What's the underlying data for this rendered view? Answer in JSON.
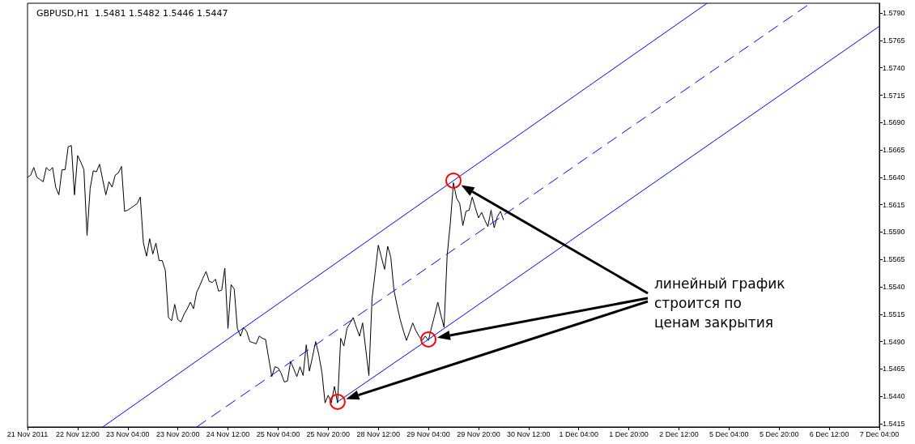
{
  "chart_data": {
    "type": "line",
    "title": "GBPUSD,H1  1.5481 1.5482 1.5446 1.5447",
    "annotations": [
      "линейный график строится по ценам закрытия"
    ],
    "categories": [
      "21 Nov 2011",
      null,
      null,
      null,
      null,
      null,
      null,
      null,
      null,
      null,
      null,
      null,
      null,
      null,
      null,
      null,
      "22 Nov 12:00",
      null,
      null,
      null,
      null,
      null,
      null,
      null,
      null,
      null,
      null,
      null,
      null,
      null,
      null,
      null,
      "23 Nov 04:00",
      null,
      null,
      null,
      null,
      null,
      null,
      null,
      null,
      null,
      null,
      null,
      null,
      null,
      null,
      null,
      "23 Nov 20:00",
      null,
      null,
      null,
      null,
      null,
      null,
      null,
      null,
      null,
      null,
      null,
      null,
      null,
      null,
      null,
      "24 Nov 12:00",
      null,
      null,
      null,
      null,
      null,
      null,
      null,
      null,
      null,
      null,
      null,
      null,
      null,
      null,
      null,
      "25 Nov 04:00",
      null,
      null,
      null,
      null,
      null,
      null,
      null,
      null,
      null,
      null,
      null,
      null,
      null,
      null,
      null,
      "25 Nov 20:00",
      null,
      null,
      null,
      null,
      null,
      null,
      null,
      null,
      null,
      null,
      null,
      null,
      null,
      null,
      null,
      "28 Nov 12:00",
      null,
      null,
      null,
      null,
      null,
      null,
      null,
      null,
      null,
      null,
      null,
      null,
      null,
      null,
      null,
      "29 Nov 04:00",
      null,
      null,
      null,
      null,
      null,
      null,
      null,
      null,
      null,
      null,
      null,
      null,
      null,
      null,
      null,
      "29 Nov 20:00",
      null,
      null,
      null,
      null,
      null,
      null,
      null,
      null,
      null,
      null,
      null,
      null,
      null,
      null,
      null,
      "30 Nov 12:00",
      null,
      null,
      null,
      null,
      null,
      null,
      null,
      null,
      null,
      null,
      null,
      null,
      null,
      null,
      null,
      "1 Dec 04:00",
      null,
      null,
      null,
      null,
      null,
      null,
      null,
      null,
      null,
      null,
      null,
      null,
      null,
      null,
      null,
      "1 Dec 20:00",
      null,
      null,
      null,
      null,
      null,
      null,
      null,
      null,
      null,
      null,
      null,
      null,
      null,
      null,
      null,
      "2 Dec 12:00",
      null,
      null,
      null,
      null,
      null,
      null,
      null,
      null,
      null,
      null,
      null,
      null,
      null,
      null,
      null,
      "5 Dec 04:00",
      null,
      null,
      null,
      null,
      null,
      null,
      null,
      null,
      null,
      null,
      null,
      null,
      null,
      null,
      null,
      "5 Dec 20:00",
      null,
      null,
      null,
      null,
      null,
      null,
      null,
      null,
      null,
      null,
      null,
      null,
      null,
      null,
      null,
      "6 Dec 12:00",
      null,
      null,
      null,
      null,
      null,
      null,
      null,
      null,
      null,
      null,
      null,
      null,
      null,
      null,
      null,
      "7 Dec 04:00"
    ],
    "ylim": [
      1.5412,
      1.5799
    ],
    "yticks": [
      1.5415,
      {
        "value": 1.544,
        "label": "1.5440"
      },
      1.5465,
      {
        "value": 1.549,
        "label": "1.5490"
      },
      1.5515,
      {
        "value": 1.554,
        "label": "1.5540"
      },
      1.5565,
      {
        "value": 1.559,
        "label": "1.5590"
      },
      1.5615,
      {
        "value": 1.564,
        "label": "1.5640"
      },
      1.5665,
      {
        "value": 1.569,
        "label": "1.5690"
      },
      1.5715,
      {
        "value": 1.574,
        "label": "1.5740"
      },
      1.5765,
      {
        "value": 1.579,
        "label": "1.5790"
      }
    ],
    "series": [
      {
        "color": "#000000",
        "line_style": "solid",
        "values": [
          1.564,
          1.5642,
          1.5649,
          1.564,
          1.5638,
          1.5636,
          1.5649,
          1.5646,
          1.5649,
          1.5631,
          1.5624,
          1.5647,
          1.5647,
          1.5668,
          1.5669,
          1.5624,
          1.566,
          1.5654,
          1.5647,
          1.5587,
          1.563,
          1.5646,
          1.5645,
          1.5652,
          1.5638,
          1.5624,
          1.5636,
          1.5631,
          1.5642,
          1.5644,
          1.565,
          1.5609,
          1.561,
          1.5612,
          1.5614,
          1.5616,
          1.5622,
          1.558,
          1.5568,
          1.5584,
          1.557,
          1.558,
          1.5564,
          1.5564,
          1.5555,
          1.5512,
          1.5509,
          1.5524,
          1.551,
          1.5508,
          1.5515,
          1.552,
          1.5526,
          1.552,
          1.5535,
          1.5541,
          1.5548,
          1.5554,
          1.5545,
          1.5544,
          1.5547,
          1.5536,
          1.5537,
          1.5557,
          1.5502,
          1.5542,
          1.5538,
          1.5502,
          1.5495,
          1.5503,
          1.5499,
          1.549,
          1.5489,
          1.5488,
          1.5495,
          1.5493,
          1.5492,
          1.5475,
          1.5458,
          1.5467,
          1.5466,
          1.5461,
          1.5453,
          1.5454,
          1.5472,
          1.5465,
          1.5458,
          1.5467,
          1.5459,
          1.5487,
          1.5463,
          1.5476,
          1.549,
          1.5478,
          1.5462,
          1.5434,
          1.5441,
          1.5434,
          1.5449,
          1.5434,
          1.5493,
          1.5486,
          1.5502,
          1.5507,
          1.5512,
          1.5503,
          1.5495,
          1.5507,
          1.5483,
          1.5459,
          1.5529,
          1.5553,
          1.5578,
          1.5567,
          1.5556,
          1.5577,
          1.5567,
          1.5537,
          1.5523,
          1.551,
          1.55,
          1.5491,
          1.5499,
          1.5507,
          1.55,
          1.5495,
          1.5491,
          1.5495,
          1.5491,
          1.5503,
          1.5514,
          1.5526,
          1.5514,
          1.5503,
          1.5569,
          1.5598,
          1.5635,
          1.5621,
          1.5616,
          1.5596,
          1.5609,
          1.561,
          1.5622,
          1.5612,
          1.5603,
          1.5608,
          1.5601,
          1.5595,
          1.561,
          1.5594,
          1.5604,
          1.5609,
          1.5601,
          null,
          null,
          null,
          null,
          null,
          null,
          null,
          null,
          null,
          null,
          null,
          null,
          null,
          null,
          null,
          null,
          null,
          null,
          null,
          null,
          null,
          null,
          null,
          null,
          null,
          null,
          null,
          null,
          null,
          null,
          null,
          null,
          null,
          null,
          null,
          null,
          null,
          null,
          null,
          null,
          null,
          null,
          null,
          null,
          null,
          null,
          null,
          null,
          null,
          null,
          null,
          null,
          null,
          null,
          null,
          null,
          null,
          null,
          null,
          null,
          null,
          null,
          null,
          null,
          null,
          null,
          null,
          null,
          null,
          null,
          null,
          null,
          null,
          null,
          null,
          null,
          null,
          null,
          null,
          null,
          null,
          null,
          null,
          null,
          null,
          null,
          null,
          null,
          null,
          null,
          null,
          null,
          null,
          null,
          null,
          null,
          null,
          null,
          null,
          null,
          null,
          null,
          null,
          null,
          null,
          null,
          null,
          null,
          null,
          null,
          null,
          null,
          null,
          null,
          null,
          null,
          null,
          null,
          null,
          null
        ]
      },
      {
        "color": "#0000ff",
        "line_style": "solid",
        "values": [
          null,
          null,
          null,
          null,
          null,
          null,
          null,
          null,
          null,
          null,
          null,
          null,
          null,
          null,
          null,
          null,
          null,
          null,
          null,
          null,
          null,
          null,
          null,
          null,
          1.5412,
          null,
          null,
          null,
          null,
          null,
          null,
          null,
          null,
          null,
          null,
          null,
          null,
          null,
          null,
          null,
          null,
          null,
          null,
          null,
          null,
          null,
          null,
          null,
          null,
          null,
          null,
          null,
          null,
          null,
          null,
          null,
          null,
          null,
          null,
          null,
          null,
          null,
          null,
          null,
          null,
          null,
          null,
          null,
          null,
          null,
          null,
          null,
          null,
          null,
          null,
          null,
          null,
          null,
          null,
          null,
          null,
          null,
          null,
          null,
          null,
          null,
          null,
          null,
          null,
          null,
          null,
          null,
          null,
          null,
          null,
          null,
          null,
          null,
          null,
          null,
          null,
          null,
          null,
          null,
          null,
          null,
          null,
          null,
          null,
          null,
          null,
          null,
          null,
          null,
          null,
          null,
          null,
          null,
          null,
          null,
          null,
          null,
          null,
          null,
          null,
          null,
          null,
          null,
          null,
          null,
          null,
          null,
          null,
          null,
          null,
          null,
          1.5637,
          null,
          null,
          null,
          null,
          null,
          null,
          null,
          null,
          null,
          null,
          null,
          null,
          null,
          null,
          null,
          null,
          null,
          null,
          null,
          null,
          null,
          null,
          null,
          null,
          null,
          null,
          null,
          null,
          null,
          null,
          null,
          null,
          null,
          null,
          null,
          null,
          null,
          null,
          null,
          null,
          null,
          null,
          null,
          null,
          null,
          null,
          null,
          null,
          null,
          null,
          null,
          null,
          null,
          null,
          null,
          null,
          null,
          null,
          null,
          null,
          null,
          null,
          null,
          null,
          null,
          null,
          null,
          null,
          null,
          null,
          null,
          null,
          null,
          null,
          null,
          null,
          null,
          null,
          null,
          null,
          1.5799,
          null,
          null,
          null,
          null,
          null,
          null,
          null,
          null,
          null,
          null,
          null,
          null,
          null,
          null,
          null,
          null,
          null,
          null,
          null,
          null,
          null,
          null,
          null,
          null,
          null,
          null,
          null,
          null,
          null,
          null,
          null,
          null,
          null,
          null,
          null,
          null,
          null,
          null,
          null,
          null,
          null,
          null,
          null,
          null,
          null,
          null,
          null,
          null,
          null,
          null,
          null,
          null,
          null,
          null,
          null
        ]
      },
      {
        "color": "#0000ff",
        "line_style": "dashed",
        "values": [
          null,
          null,
          null,
          null,
          null,
          null,
          null,
          null,
          null,
          null,
          null,
          null,
          null,
          null,
          null,
          null,
          null,
          null,
          null,
          null,
          null,
          null,
          null,
          null,
          null,
          null,
          null,
          null,
          null,
          null,
          null,
          null,
          null,
          null,
          null,
          null,
          null,
          null,
          null,
          null,
          null,
          null,
          null,
          null,
          null,
          null,
          null,
          null,
          null,
          null,
          null,
          null,
          null,
          null,
          1.5412,
          null,
          null,
          null,
          null,
          null,
          null,
          null,
          null,
          null,
          null,
          null,
          null,
          null,
          null,
          null,
          null,
          null,
          null,
          null,
          null,
          null,
          null,
          null,
          null,
          null,
          null,
          null,
          null,
          null,
          null,
          null,
          null,
          null,
          null,
          null,
          null,
          null,
          null,
          null,
          null,
          null,
          null,
          null,
          null,
          null,
          null,
          null,
          null,
          null,
          null,
          null,
          null,
          null,
          null,
          null,
          null,
          null,
          null,
          null,
          null,
          null,
          null,
          null,
          null,
          null,
          null,
          null,
          null,
          null,
          null,
          null,
          null,
          null,
          null,
          null,
          null,
          null,
          null,
          null,
          null,
          null,
          null,
          null,
          null,
          null,
          null,
          null,
          null,
          null,
          null,
          null,
          null,
          null,
          null,
          null,
          null,
          null,
          null,
          null,
          null,
          null,
          null,
          null,
          null,
          null,
          null,
          null,
          null,
          null,
          null,
          null,
          null,
          null,
          null,
          null,
          null,
          null,
          null,
          null,
          null,
          null,
          null,
          null,
          null,
          null,
          null,
          null,
          null,
          null,
          null,
          null,
          null,
          null,
          null,
          null,
          null,
          null,
          null,
          null,
          null,
          null,
          null,
          null,
          null,
          null,
          null,
          null,
          null,
          null,
          null,
          null,
          null,
          null,
          null,
          null,
          null,
          null,
          null,
          null,
          null,
          null,
          null,
          null,
          null,
          null,
          null,
          null,
          null,
          null,
          null,
          null,
          null,
          null,
          null,
          null,
          null,
          null,
          null,
          null,
          null,
          null,
          null,
          null,
          null,
          null,
          null,
          null,
          null,
          null,
          null,
          null,
          null,
          null,
          null,
          null,
          1.5799,
          null,
          null,
          null,
          null,
          null,
          null,
          null,
          null,
          null,
          null,
          null,
          null,
          null,
          null,
          null,
          null,
          null,
          null,
          null,
          null,
          null,
          null
        ]
      },
      {
        "color": "#0000ff",
        "line_style": "solid",
        "values": [
          null,
          null,
          null,
          null,
          null,
          null,
          null,
          null,
          null,
          null,
          null,
          null,
          null,
          null,
          null,
          null,
          null,
          null,
          null,
          null,
          null,
          null,
          null,
          null,
          null,
          null,
          null,
          null,
          null,
          null,
          null,
          null,
          null,
          null,
          null,
          null,
          null,
          null,
          null,
          null,
          null,
          null,
          null,
          null,
          null,
          null,
          null,
          null,
          null,
          null,
          null,
          null,
          null,
          null,
          null,
          null,
          null,
          null,
          null,
          null,
          null,
          null,
          null,
          null,
          null,
          null,
          null,
          null,
          null,
          null,
          null,
          null,
          null,
          null,
          null,
          null,
          null,
          null,
          null,
          null,
          null,
          null,
          null,
          null,
          null,
          null,
          null,
          null,
          null,
          null,
          null,
          null,
          null,
          null,
          null,
          null,
          null,
          null,
          null,
          1.5435,
          null,
          null,
          null,
          null,
          null,
          null,
          null,
          null,
          null,
          null,
          null,
          null,
          null,
          null,
          null,
          null,
          null,
          null,
          null,
          null,
          null,
          null,
          null,
          null,
          null,
          null,
          null,
          null,
          1.5492,
          null,
          null,
          null,
          null,
          null,
          null,
          null,
          null,
          null,
          null,
          null,
          null,
          null,
          null,
          null,
          null,
          null,
          null,
          null,
          null,
          null,
          null,
          null,
          null,
          null,
          null,
          null,
          null,
          null,
          null,
          null,
          null,
          null,
          null,
          null,
          null,
          null,
          null,
          null,
          null,
          null,
          null,
          null,
          null,
          null,
          null,
          null,
          null,
          null,
          null,
          null,
          null,
          null,
          null,
          null,
          null,
          null,
          null,
          null,
          null,
          null,
          null,
          null,
          null,
          null,
          null,
          null,
          null,
          null,
          null,
          null,
          null,
          null,
          null,
          null,
          null,
          null,
          null,
          null,
          null,
          null,
          null,
          null,
          null,
          null,
          null,
          null,
          null,
          null,
          null,
          null,
          null,
          null,
          null,
          null,
          null,
          null,
          null,
          null,
          null,
          null,
          null,
          null,
          null,
          null,
          null,
          null,
          null,
          null,
          null,
          null,
          null,
          null,
          null,
          null,
          null,
          null,
          null,
          null,
          null,
          null,
          null,
          null,
          null,
          null,
          null,
          null,
          null,
          null,
          null,
          null,
          null,
          null,
          null,
          null,
          null,
          null,
          null,
          null,
          null,
          null,
          null,
          null,
          1.5778
        ]
      }
    ]
  }
}
